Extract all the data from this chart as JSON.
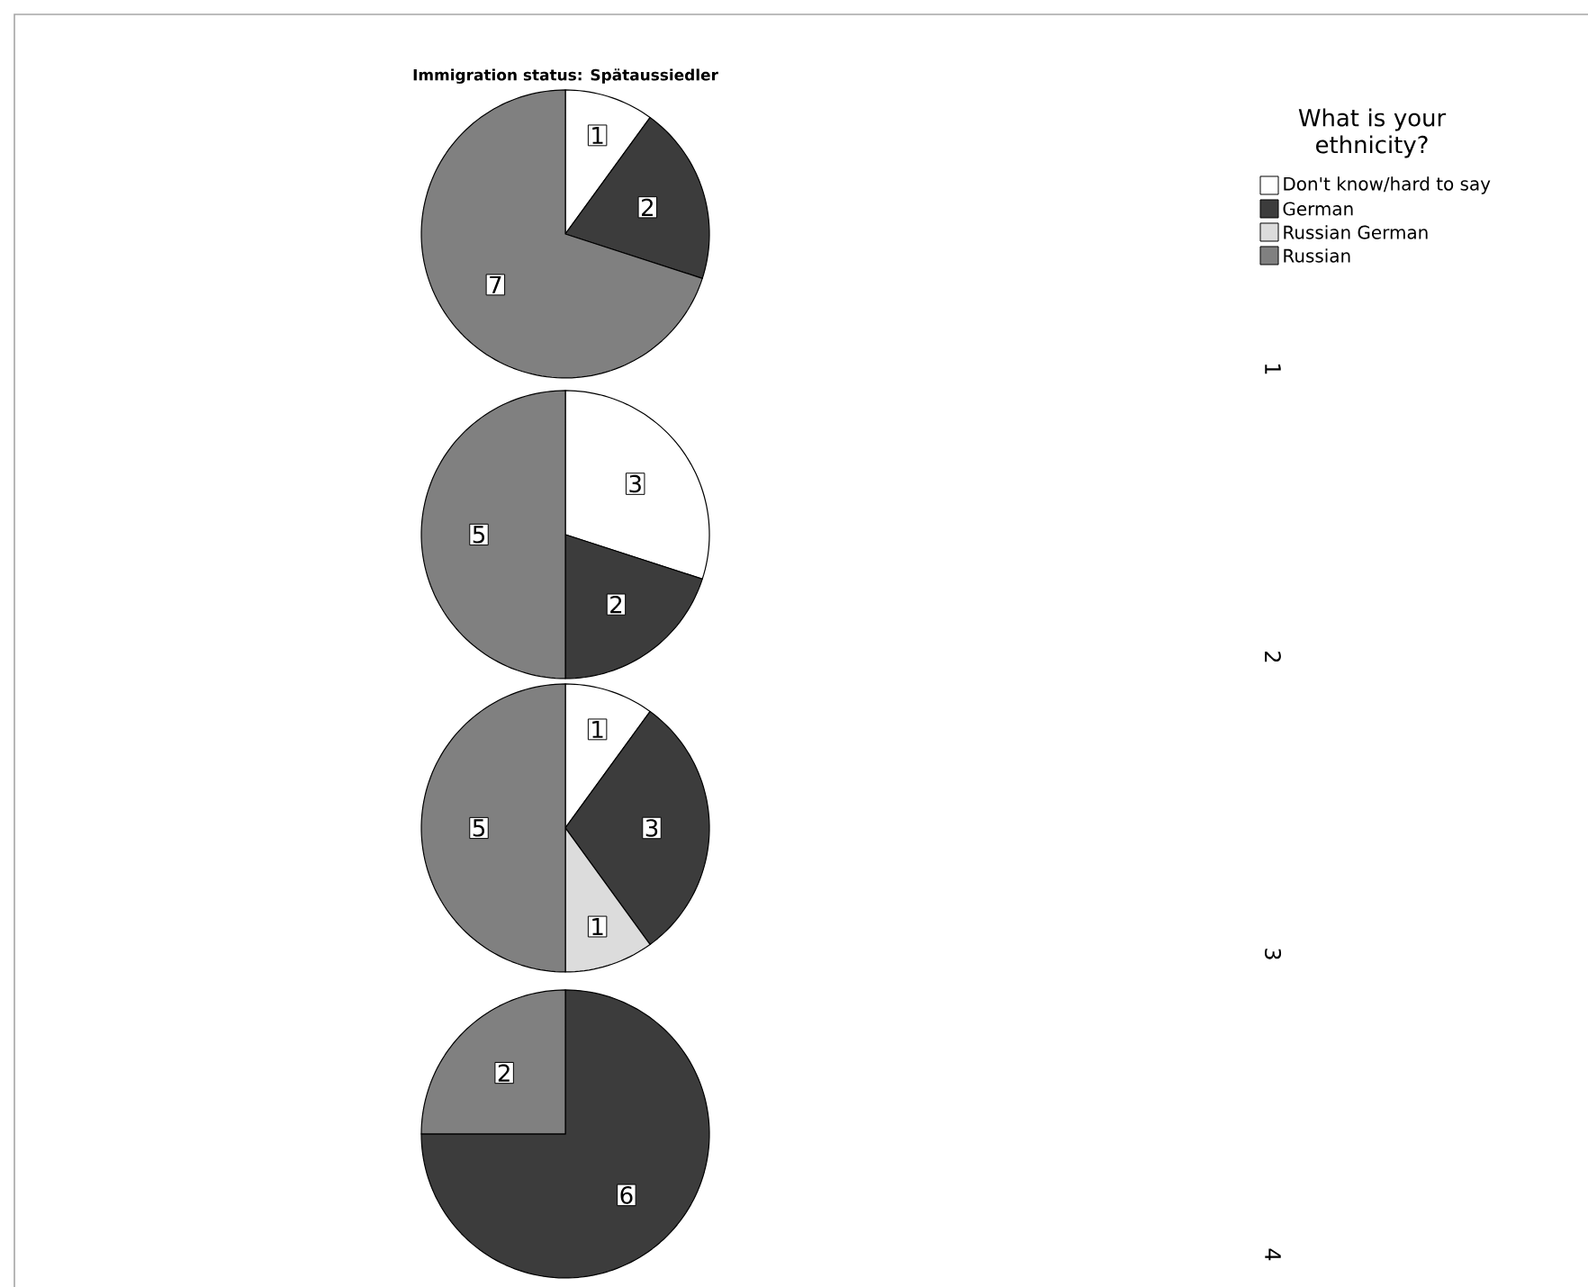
{
  "chart_data": [
    {
      "type": "pie",
      "title": "Immigration status: Spätaussiedler",
      "legend_title": "What is your ethnicity?",
      "legend": "top right",
      "annotations": [
        "1"
      ],
      "categories": [
        "Don't know/hard to say",
        "German",
        "Russian German",
        "Russian"
      ],
      "values": [
        1,
        2,
        0,
        7
      ],
      "value_labels": [
        "1",
        "2",
        null,
        "7"
      ],
      "colors": [
        "#ffffff",
        "#3c3c3c",
        "#dcdcdc",
        "#808080"
      ]
    },
    {
      "type": "pie",
      "annotations": [
        "2"
      ],
      "categories": [
        null,
        null,
        null,
        null
      ],
      "values": [
        3,
        2,
        0,
        5
      ],
      "value_labels": [
        "3",
        "2",
        null,
        "5"
      ],
      "colors": [
        "#ffffff",
        "#3c3c3c",
        "#dcdcdc",
        "#808080"
      ]
    },
    {
      "type": "pie",
      "annotations": [
        "3"
      ],
      "categories": [
        null,
        null,
        null,
        null
      ],
      "values": [
        1,
        3,
        1,
        5
      ],
      "value_labels": [
        "1",
        "3",
        "1",
        "5"
      ],
      "colors": [
        "#ffffff",
        "#3c3c3c",
        "#dcdcdc",
        "#808080"
      ]
    },
    {
      "type": "pie",
      "annotations": [
        "4"
      ],
      "categories": [
        null,
        null,
        null,
        null
      ],
      "values": [
        0,
        6,
        0,
        2
      ],
      "value_labels": [
        null,
        "6",
        null,
        "2"
      ],
      "colors": [
        "#ffffff",
        "#3c3c3c",
        "#dcdcdc",
        "#808080"
      ]
    }
  ]
}
